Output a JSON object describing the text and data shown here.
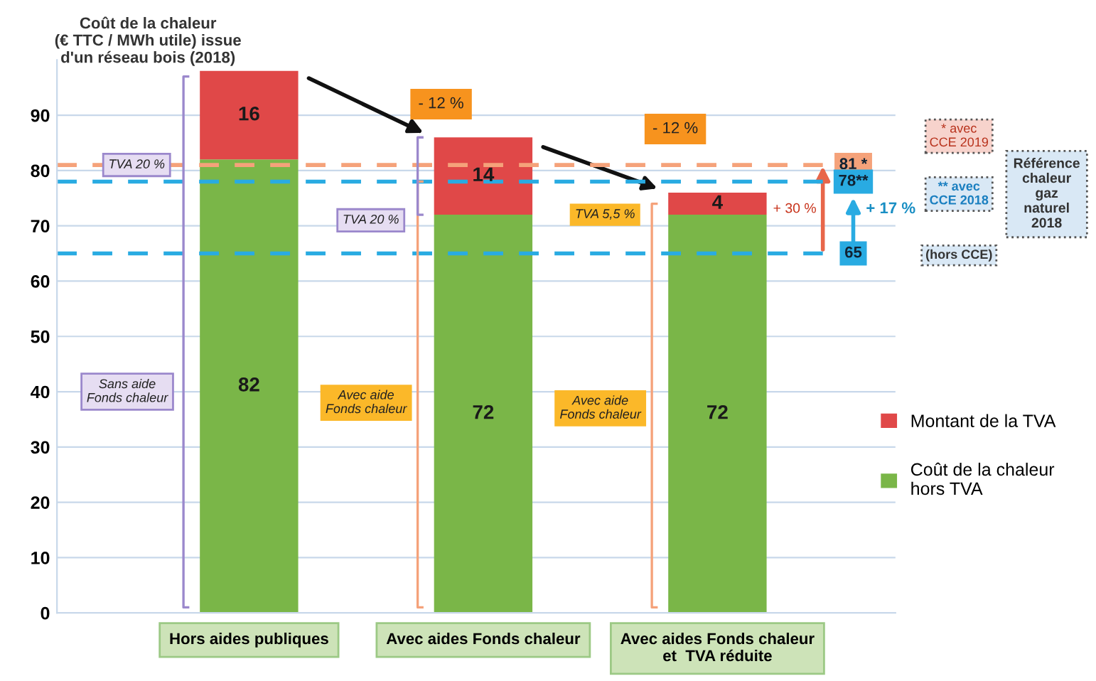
{
  "chart_data": {
    "type": "bar",
    "stacked": true,
    "title": "Coût de la chaleur\n(€ TTC / MWh utile) issue\nd'un réseau bois (2018)",
    "categories": [
      "Hors aides publiques",
      "Avec aides Fonds chaleur",
      "Avec aides Fonds chaleur\net  TVA réduite"
    ],
    "series": [
      {
        "name": "Coût de la chaleur\nhors TVA",
        "color": "#7ab648",
        "values": [
          82,
          72,
          72
        ]
      },
      {
        "name": "Montant de la TVA",
        "color": "#e04848",
        "values": [
          16,
          14,
          4
        ]
      }
    ],
    "data_labels": true,
    "ylim": [
      0,
      100
    ],
    "yticks": [
      0,
      10,
      20,
      30,
      40,
      50,
      60,
      70,
      80,
      90
    ],
    "grid": "y",
    "legend": "right",
    "ref_lines": [
      {
        "axis": "y",
        "value": 81,
        "label": "81 *",
        "color": "#f5a27a",
        "line_style": "dashed"
      },
      {
        "axis": "y",
        "value": 78,
        "label": "78**",
        "color": "#29abe2",
        "line_style": "dashed"
      },
      {
        "axis": "y",
        "value": 65,
        "label": "65",
        "color": "#29abe2",
        "line_style": "dashed"
      }
    ],
    "annotations": [
      "- 12 %",
      "- 12 %",
      "+ 30 %",
      "+ 17 %",
      "TVA 20 %",
      "TVA 20 %",
      "TVA 5,5 %",
      "Sans aide\nFonds chaleur",
      "Avec aide\nFonds chaleur",
      "Avec aide\nFonds chaleur",
      "* avec\nCCE 2019",
      "** avec\nCCE 2018",
      "(hors CCE)",
      "Référence\nchaleur\ngaz\nnaturel\n2018"
    ]
  }
}
